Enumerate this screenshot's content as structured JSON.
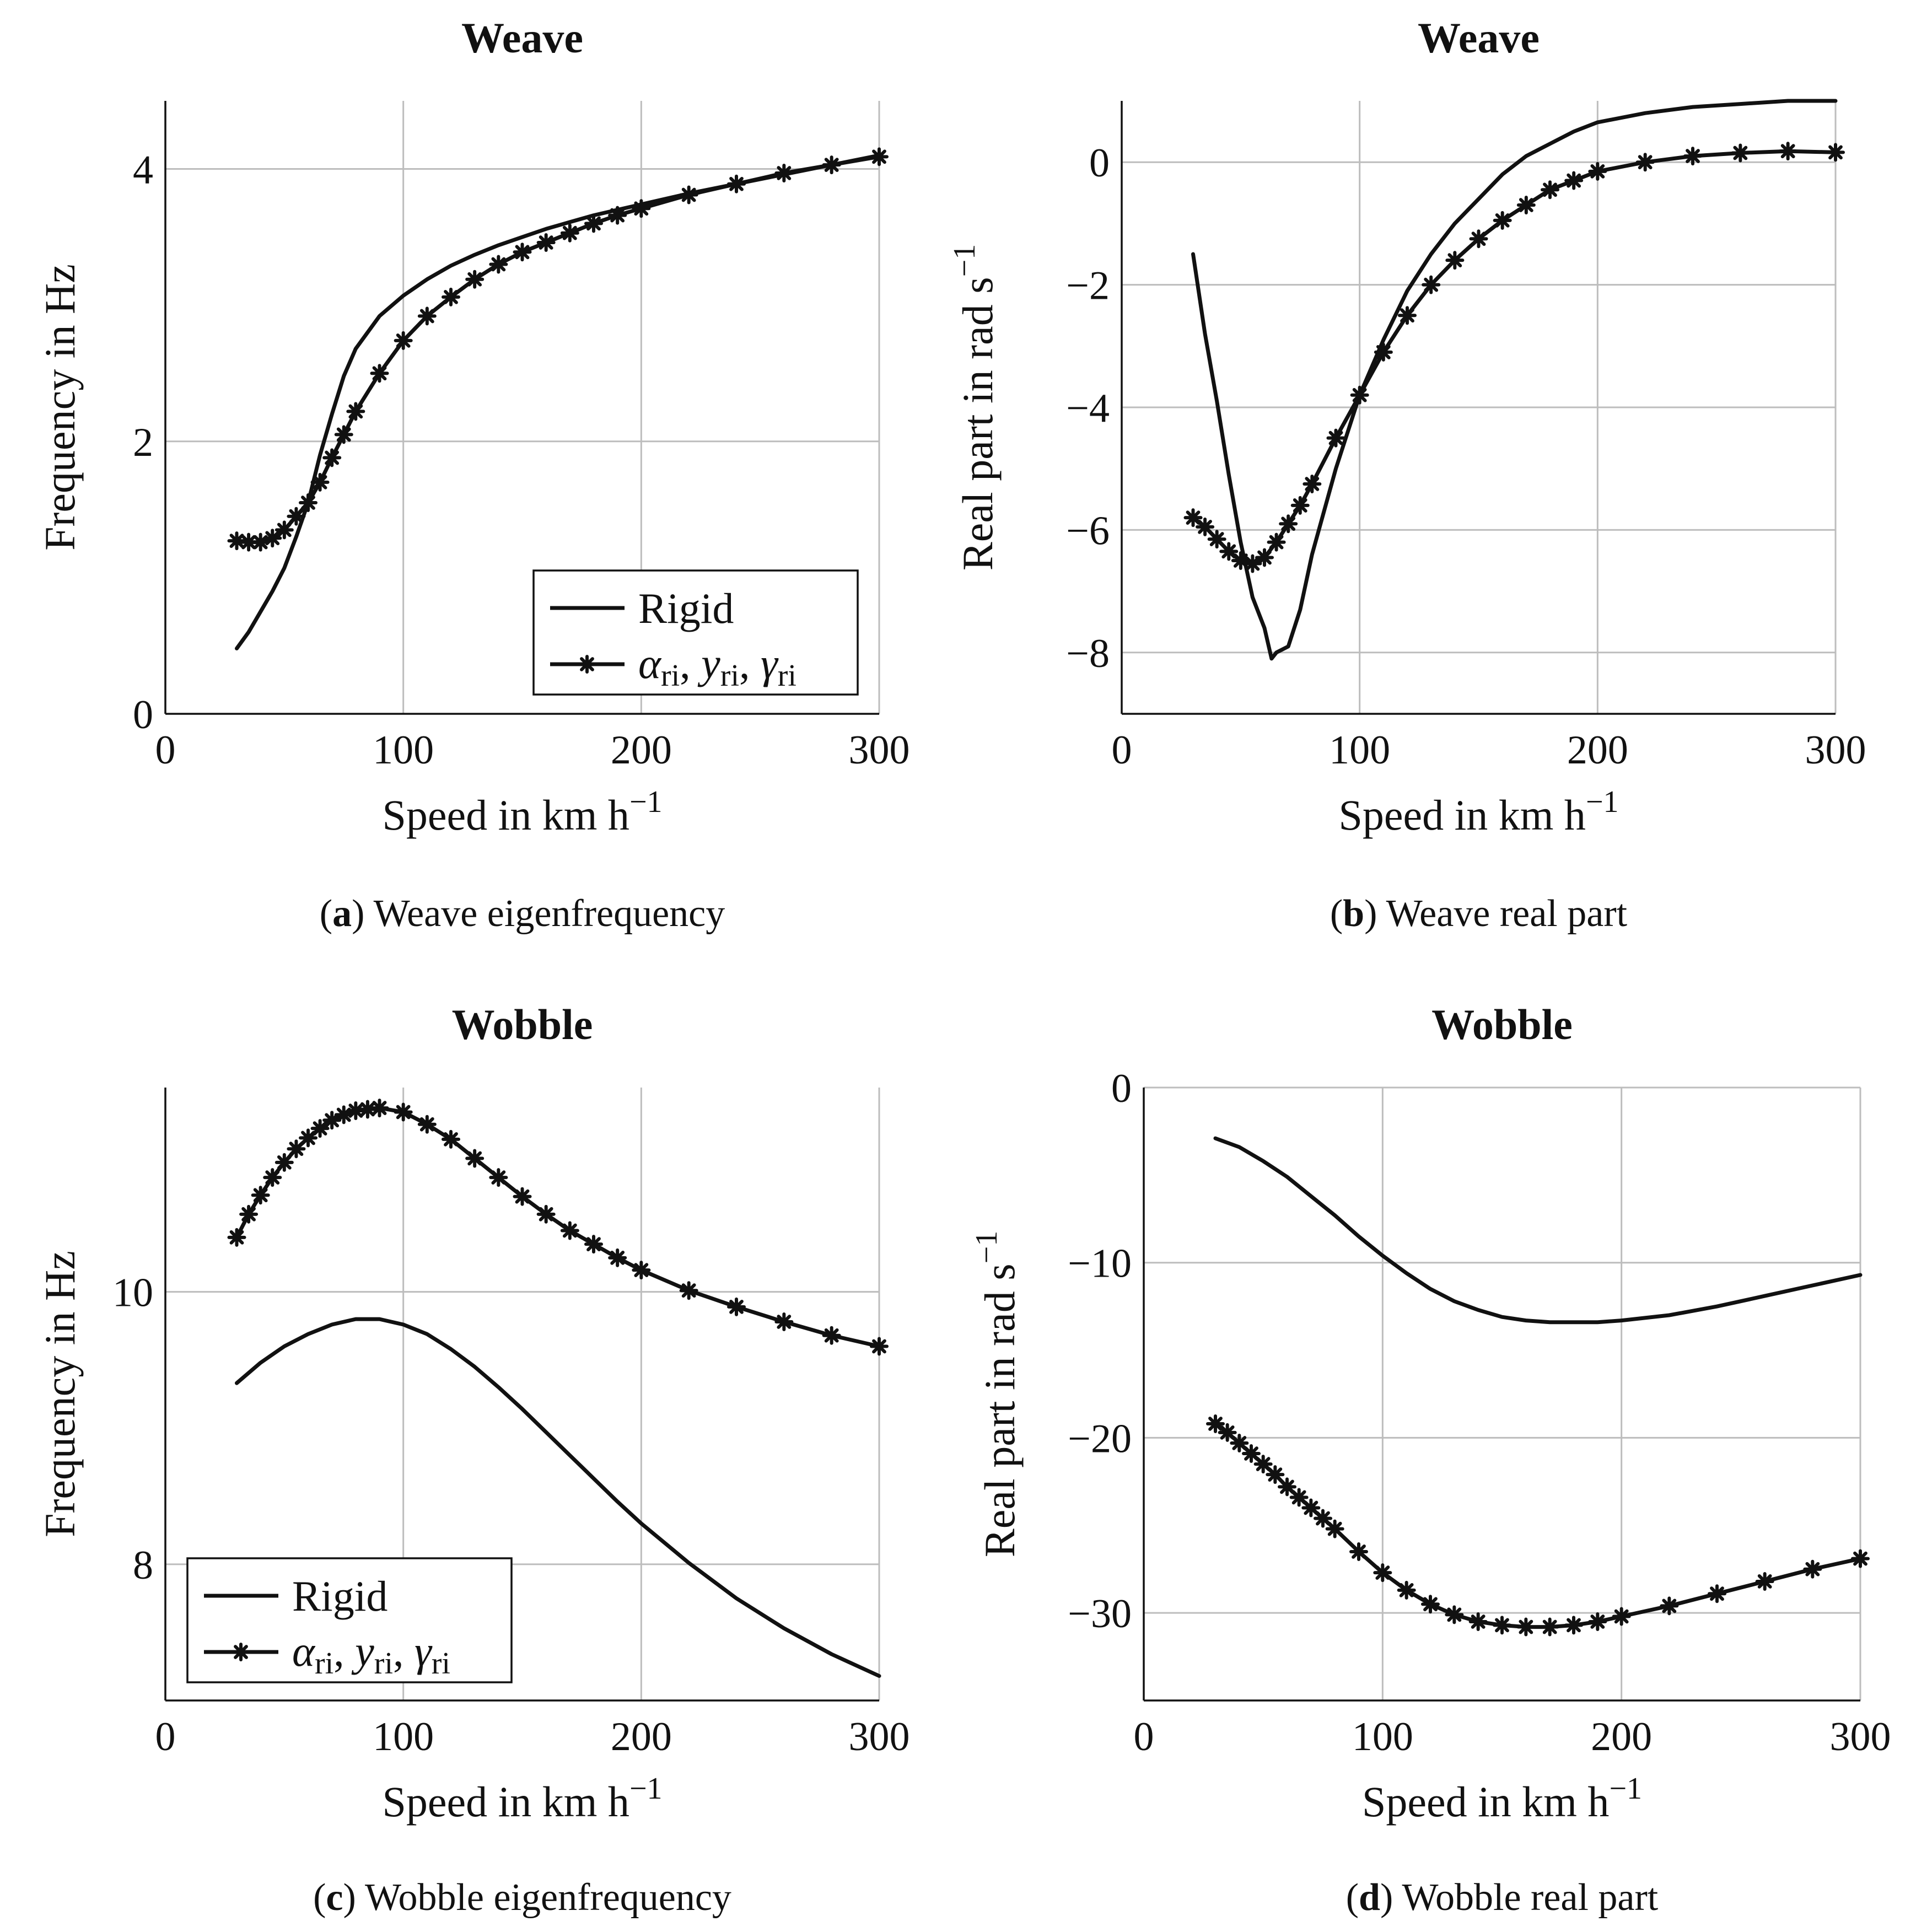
{
  "figure": {
    "panels": [
      {
        "id": "a",
        "caption_letter": "(a)",
        "caption_text": " Weave eigenfrequency"
      },
      {
        "id": "b",
        "caption_letter": "(b)",
        "caption_text": " Weave real part"
      },
      {
        "id": "c",
        "caption_letter": "(c)",
        "caption_text": " Wobble eigenfrequency"
      },
      {
        "id": "d",
        "caption_letter": "(d)",
        "caption_text": " Wobble real part"
      }
    ],
    "legend": {
      "rigid": "Rigid",
      "flex": [
        {
          "sym": "α",
          "sub": "ri"
        },
        {
          "sym": "y",
          "sub": "ri"
        },
        {
          "sym": "γ",
          "sub": "ri"
        }
      ]
    },
    "colors": {
      "line": "#111111",
      "grid": "#bdbdbd",
      "axis": "#111111"
    }
  },
  "chart_data": [
    {
      "id": "a",
      "type": "line",
      "title": "Weave",
      "xlabel": "Speed in km h⁻¹",
      "ylabel": "Frequency in Hz",
      "xlim": [
        0,
        300
      ],
      "ylim": [
        0,
        4.5
      ],
      "xticks": [
        0,
        100,
        200,
        300
      ],
      "yticks": [
        0,
        2,
        4
      ],
      "grid": true,
      "legend_position": "bottom-right",
      "series": [
        {
          "name": "Rigid",
          "marker": false,
          "x": [
            30,
            35,
            40,
            45,
            50,
            55,
            60,
            65,
            70,
            75,
            80,
            90,
            100,
            110,
            120,
            130,
            140,
            150,
            160,
            170,
            180,
            190,
            200,
            220,
            240,
            260,
            280,
            300
          ],
          "y": [
            0.48,
            0.6,
            0.75,
            0.9,
            1.07,
            1.3,
            1.55,
            1.9,
            2.2,
            2.48,
            2.68,
            2.92,
            3.07,
            3.19,
            3.29,
            3.37,
            3.44,
            3.5,
            3.56,
            3.61,
            3.66,
            3.7,
            3.74,
            3.82,
            3.89,
            3.96,
            4.03,
            4.1
          ]
        },
        {
          "name": "α_ri, y_ri, γ_ri",
          "marker": true,
          "x": [
            30,
            35,
            40,
            45,
            50,
            55,
            60,
            65,
            70,
            75,
            80,
            90,
            100,
            110,
            120,
            130,
            140,
            150,
            160,
            170,
            180,
            190,
            200,
            220,
            240,
            260,
            280,
            300
          ],
          "y": [
            1.27,
            1.26,
            1.26,
            1.29,
            1.35,
            1.45,
            1.55,
            1.7,
            1.88,
            2.05,
            2.22,
            2.5,
            2.74,
            2.92,
            3.06,
            3.19,
            3.3,
            3.39,
            3.46,
            3.53,
            3.6,
            3.66,
            3.71,
            3.81,
            3.89,
            3.97,
            4.03,
            4.09
          ]
        }
      ]
    },
    {
      "id": "b",
      "type": "line",
      "title": "Weave",
      "xlabel": "Speed in km h⁻¹",
      "ylabel": "Real part in rad s⁻¹",
      "xlim": [
        0,
        300
      ],
      "ylim": [
        -9,
        1
      ],
      "xticks": [
        0,
        100,
        200,
        300
      ],
      "yticks": [
        -8,
        -6,
        -4,
        -2,
        0
      ],
      "grid": true,
      "legend_position": "none",
      "series": [
        {
          "name": "Rigid",
          "marker": false,
          "x": [
            30,
            35,
            40,
            45,
            50,
            55,
            60,
            63,
            65,
            70,
            75,
            80,
            90,
            100,
            110,
            120,
            130,
            140,
            150,
            160,
            170,
            180,
            190,
            200,
            220,
            240,
            260,
            280,
            300
          ],
          "y": [
            -1.5,
            -2.8,
            -3.9,
            -5.1,
            -6.2,
            -7.1,
            -7.6,
            -8.1,
            -8.0,
            -7.9,
            -7.3,
            -6.4,
            -5.0,
            -3.8,
            -2.9,
            -2.1,
            -1.5,
            -1.0,
            -0.6,
            -0.2,
            0.1,
            0.3,
            0.5,
            0.65,
            0.8,
            0.9,
            0.95,
            1.0,
            1.0
          ]
        },
        {
          "name": "α_ri, y_ri, γ_ri",
          "marker": true,
          "x": [
            30,
            35,
            40,
            45,
            50,
            55,
            60,
            65,
            70,
            75,
            80,
            90,
            100,
            110,
            120,
            130,
            140,
            150,
            160,
            170,
            180,
            190,
            200,
            220,
            240,
            260,
            280,
            300
          ],
          "y": [
            -5.8,
            -5.95,
            -6.15,
            -6.35,
            -6.5,
            -6.55,
            -6.45,
            -6.2,
            -5.9,
            -5.6,
            -5.25,
            -4.5,
            -3.8,
            -3.1,
            -2.5,
            -2.0,
            -1.6,
            -1.25,
            -0.95,
            -0.7,
            -0.45,
            -0.3,
            -0.15,
            0.0,
            0.1,
            0.15,
            0.18,
            0.16
          ]
        }
      ]
    },
    {
      "id": "c",
      "type": "line",
      "title": "Wobble",
      "xlabel": "Speed in km h⁻¹",
      "ylabel": "Frequency in Hz",
      "xlim": [
        0,
        300
      ],
      "ylim": [
        7,
        11.5
      ],
      "xticks": [
        0,
        100,
        200,
        300
      ],
      "yticks": [
        8,
        10
      ],
      "grid": true,
      "legend_position": "bottom-left",
      "series": [
        {
          "name": "Rigid",
          "marker": false,
          "x": [
            30,
            40,
            50,
            60,
            70,
            80,
            90,
            100,
            110,
            120,
            130,
            140,
            150,
            160,
            170,
            180,
            190,
            200,
            220,
            240,
            260,
            280,
            300
          ],
          "y": [
            9.33,
            9.48,
            9.6,
            9.69,
            9.76,
            9.8,
            9.8,
            9.76,
            9.69,
            9.58,
            9.45,
            9.3,
            9.14,
            8.97,
            8.8,
            8.63,
            8.46,
            8.3,
            8.01,
            7.75,
            7.53,
            7.34,
            7.18
          ]
        },
        {
          "name": "α_ri, y_ri, γ_ri",
          "marker": true,
          "x": [
            30,
            35,
            40,
            45,
            50,
            55,
            60,
            65,
            70,
            75,
            80,
            85,
            90,
            100,
            110,
            120,
            130,
            140,
            150,
            160,
            170,
            180,
            190,
            200,
            220,
            240,
            260,
            280,
            300
          ],
          "y": [
            10.4,
            10.57,
            10.71,
            10.84,
            10.95,
            11.05,
            11.13,
            11.2,
            11.26,
            11.3,
            11.33,
            11.34,
            11.35,
            11.32,
            11.23,
            11.12,
            10.98,
            10.84,
            10.7,
            10.57,
            10.45,
            10.35,
            10.25,
            10.16,
            10.01,
            9.89,
            9.78,
            9.68,
            9.6
          ]
        }
      ]
    },
    {
      "id": "d",
      "type": "line",
      "title": "Wobble",
      "xlabel": "Speed in km h⁻¹",
      "ylabel": "Real part in rad s⁻¹",
      "xlim": [
        0,
        300
      ],
      "ylim": [
        -35,
        0
      ],
      "xticks": [
        0,
        100,
        200,
        300
      ],
      "yticks": [
        -30,
        -20,
        -10,
        0
      ],
      "grid": true,
      "legend_position": "none",
      "series": [
        {
          "name": "Rigid",
          "marker": false,
          "x": [
            30,
            40,
            50,
            60,
            70,
            80,
            90,
            100,
            110,
            120,
            130,
            140,
            150,
            160,
            170,
            180,
            190,
            200,
            220,
            240,
            260,
            280,
            300
          ],
          "y": [
            -2.9,
            -3.4,
            -4.2,
            -5.1,
            -6.2,
            -7.3,
            -8.5,
            -9.6,
            -10.6,
            -11.5,
            -12.2,
            -12.7,
            -13.1,
            -13.3,
            -13.4,
            -13.4,
            -13.4,
            -13.3,
            -13.0,
            -12.5,
            -11.9,
            -11.3,
            -10.7
          ]
        },
        {
          "name": "α_ri, y_ri, γ_ri",
          "marker": true,
          "x": [
            30,
            35,
            40,
            45,
            50,
            55,
            60,
            65,
            70,
            75,
            80,
            90,
            100,
            110,
            120,
            130,
            140,
            150,
            160,
            170,
            180,
            190,
            200,
            220,
            240,
            260,
            280,
            300
          ],
          "y": [
            -19.2,
            -19.7,
            -20.3,
            -20.9,
            -21.5,
            -22.1,
            -22.8,
            -23.4,
            -24.0,
            -24.6,
            -25.2,
            -26.5,
            -27.7,
            -28.7,
            -29.5,
            -30.1,
            -30.5,
            -30.7,
            -30.8,
            -30.8,
            -30.7,
            -30.5,
            -30.2,
            -29.6,
            -28.9,
            -28.2,
            -27.5,
            -26.9
          ]
        }
      ]
    }
  ]
}
